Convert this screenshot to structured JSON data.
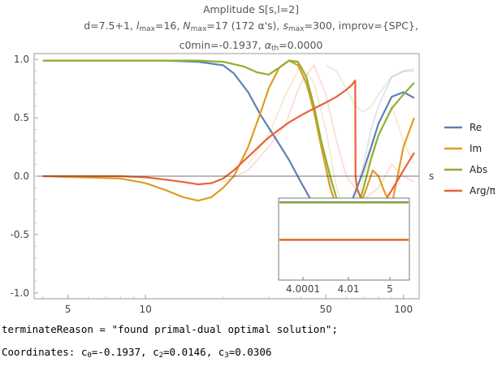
{
  "title": {
    "line1": "Amplitude S[s,l=2]",
    "line2_prefix": "d=7.5+1, ",
    "l_sym": "l",
    "l_sub": "max",
    "l_val": "=16, ",
    "n_sym": "N",
    "n_sub": "max",
    "n_val": "=17 (172 α's), ",
    "s_sym": "s",
    "s_sub": "max",
    "s_val": "=300, improv={SPC},",
    "line3_prefix": "c0min=-0.1937, ",
    "a_sym": "α",
    "a_sub": "th",
    "a_val": "=0.0000"
  },
  "chart_data": {
    "type": "line",
    "xscale": "log",
    "xlim": [
      3.7,
      115
    ],
    "ylim": [
      -1.05,
      1.05
    ],
    "xlabel": "s",
    "xticks": [
      5,
      10,
      50,
      100
    ],
    "xtick_labels": [
      "5",
      "10",
      "50",
      "100"
    ],
    "yticks": [
      -1.0,
      -0.5,
      0.0,
      0.5,
      1.0
    ],
    "ytick_labels": [
      "-1.0",
      "-0.5",
      "0.0",
      "0.5",
      "1.0"
    ],
    "legend_position": "right",
    "series": [
      {
        "name": "Re",
        "color": "#5e81b5",
        "x": [
          4,
          8,
          12,
          16,
          20,
          22,
          25,
          28,
          32,
          36,
          40,
          45,
          50,
          56,
          62,
          66,
          70,
          75,
          80,
          90,
          100,
          110
        ],
        "y": [
          0.99,
          0.99,
          0.99,
          0.98,
          0.95,
          0.88,
          0.72,
          0.52,
          0.32,
          0.14,
          -0.05,
          -0.25,
          -0.4,
          -0.4,
          -0.25,
          -0.1,
          0.05,
          0.25,
          0.45,
          0.68,
          0.72,
          0.67
        ]
      },
      {
        "name": "Im",
        "color": "#e19c24",
        "x": [
          4,
          8,
          10,
          12,
          14,
          16,
          18,
          20,
          22,
          25,
          28,
          30,
          33,
          36,
          39,
          42,
          45,
          48,
          52,
          56,
          60,
          64,
          68,
          72,
          76,
          80,
          85,
          90,
          100,
          110
        ],
        "y": [
          0.0,
          -0.02,
          -0.06,
          -0.12,
          -0.18,
          -0.21,
          -0.18,
          -0.1,
          0.0,
          0.25,
          0.55,
          0.75,
          0.93,
          0.99,
          0.95,
          0.8,
          0.55,
          0.25,
          -0.1,
          -0.32,
          -0.42,
          -0.38,
          -0.25,
          -0.1,
          0.05,
          0.0,
          -0.15,
          -0.25,
          0.25,
          0.5
        ]
      },
      {
        "name": "Abs",
        "color": "#8fb032",
        "x": [
          4,
          12,
          16,
          20,
          24,
          27,
          30,
          33,
          36,
          39,
          42,
          45,
          48,
          52,
          56,
          60,
          63,
          66,
          70,
          75,
          80,
          90,
          100,
          110
        ],
        "y": [
          0.99,
          0.99,
          0.99,
          0.98,
          0.94,
          0.89,
          0.87,
          0.93,
          0.99,
          0.98,
          0.85,
          0.6,
          0.3,
          0.0,
          -0.25,
          -0.4,
          -0.4,
          -0.3,
          -0.1,
          0.15,
          0.35,
          0.58,
          0.7,
          0.8
        ]
      },
      {
        "name": "Arg/π",
        "color": "#eb6235",
        "x": [
          4,
          8,
          10,
          12,
          14,
          16,
          18,
          20,
          22,
          24,
          26,
          28,
          30,
          33,
          36,
          40,
          45,
          50,
          55,
          60,
          63,
          65,
          65.2,
          66,
          70,
          75,
          80,
          90,
          100,
          110
        ],
        "y": [
          0.0,
          0.0,
          -0.01,
          -0.03,
          -0.05,
          -0.07,
          -0.06,
          -0.02,
          0.05,
          0.13,
          0.2,
          0.27,
          0.33,
          0.4,
          0.46,
          0.52,
          0.58,
          0.63,
          0.68,
          0.74,
          0.78,
          0.82,
          0.0,
          -0.1,
          -0.25,
          -0.35,
          -0.3,
          -0.12,
          0.05,
          0.2
        ]
      }
    ],
    "ghost_curves_note": "faint unlabeled overlays",
    "ghost": [
      {
        "color": "#5e81b5",
        "x": [
          40,
          45,
          50,
          55,
          60,
          65,
          70,
          75,
          80,
          90,
          100,
          110
        ],
        "y": [
          0.9,
          0.6,
          0.1,
          -0.3,
          -0.4,
          -0.2,
          0.1,
          0.4,
          0.6,
          0.85,
          0.9,
          0.9
        ]
      },
      {
        "color": "#e19c24",
        "x": [
          25,
          30,
          35,
          40,
          45,
          50,
          55,
          60,
          65,
          70,
          80,
          90,
          100,
          110
        ],
        "y": [
          0.1,
          0.35,
          0.7,
          0.95,
          0.8,
          0.4,
          -0.1,
          -0.35,
          -0.3,
          0.0,
          0.35,
          0.6,
          0.3,
          0.1
        ]
      },
      {
        "color": "#8fb032",
        "x": [
          50,
          55,
          60,
          65,
          70,
          75,
          80,
          90,
          100,
          110
        ],
        "y": [
          0.95,
          0.9,
          0.75,
          0.6,
          0.55,
          0.6,
          0.7,
          0.85,
          0.9,
          0.92
        ]
      },
      {
        "color": "#eb6235",
        "x": [
          20,
          25,
          30,
          35,
          40,
          45,
          50,
          55,
          60,
          70,
          80,
          90,
          100,
          110
        ],
        "y": [
          -0.05,
          0.05,
          0.25,
          0.45,
          0.8,
          0.95,
          0.7,
          0.3,
          0.0,
          -0.2,
          -0.1,
          0.1,
          0.0,
          -0.05
        ]
      }
    ],
    "inset": {
      "xtick_labels": [
        "4.0001",
        "4.01",
        "5"
      ],
      "series": [
        {
          "name": "Re",
          "color": "#5e81b5",
          "y": 0.99
        },
        {
          "name": "Abs",
          "color": "#8fb032",
          "y": 0.99
        },
        {
          "name": "Im",
          "color": "#e19c24",
          "y": 0.0
        },
        {
          "name": "Arg/π",
          "color": "#eb6235",
          "y": 0.0
        }
      ]
    }
  },
  "console": {
    "line1": "terminateReason = \"found primal-dual optimal solution\";",
    "coords_prefix": "Coordinates: ",
    "c0_label": "c",
    "c0_sub": "0",
    "c0_val": "=-0.1937, ",
    "c2_label": "c",
    "c2_sub": "2",
    "c2_val": "=0.0146, ",
    "c3_label": "c",
    "c3_sub": "3",
    "c3_val": "=0.0306"
  }
}
